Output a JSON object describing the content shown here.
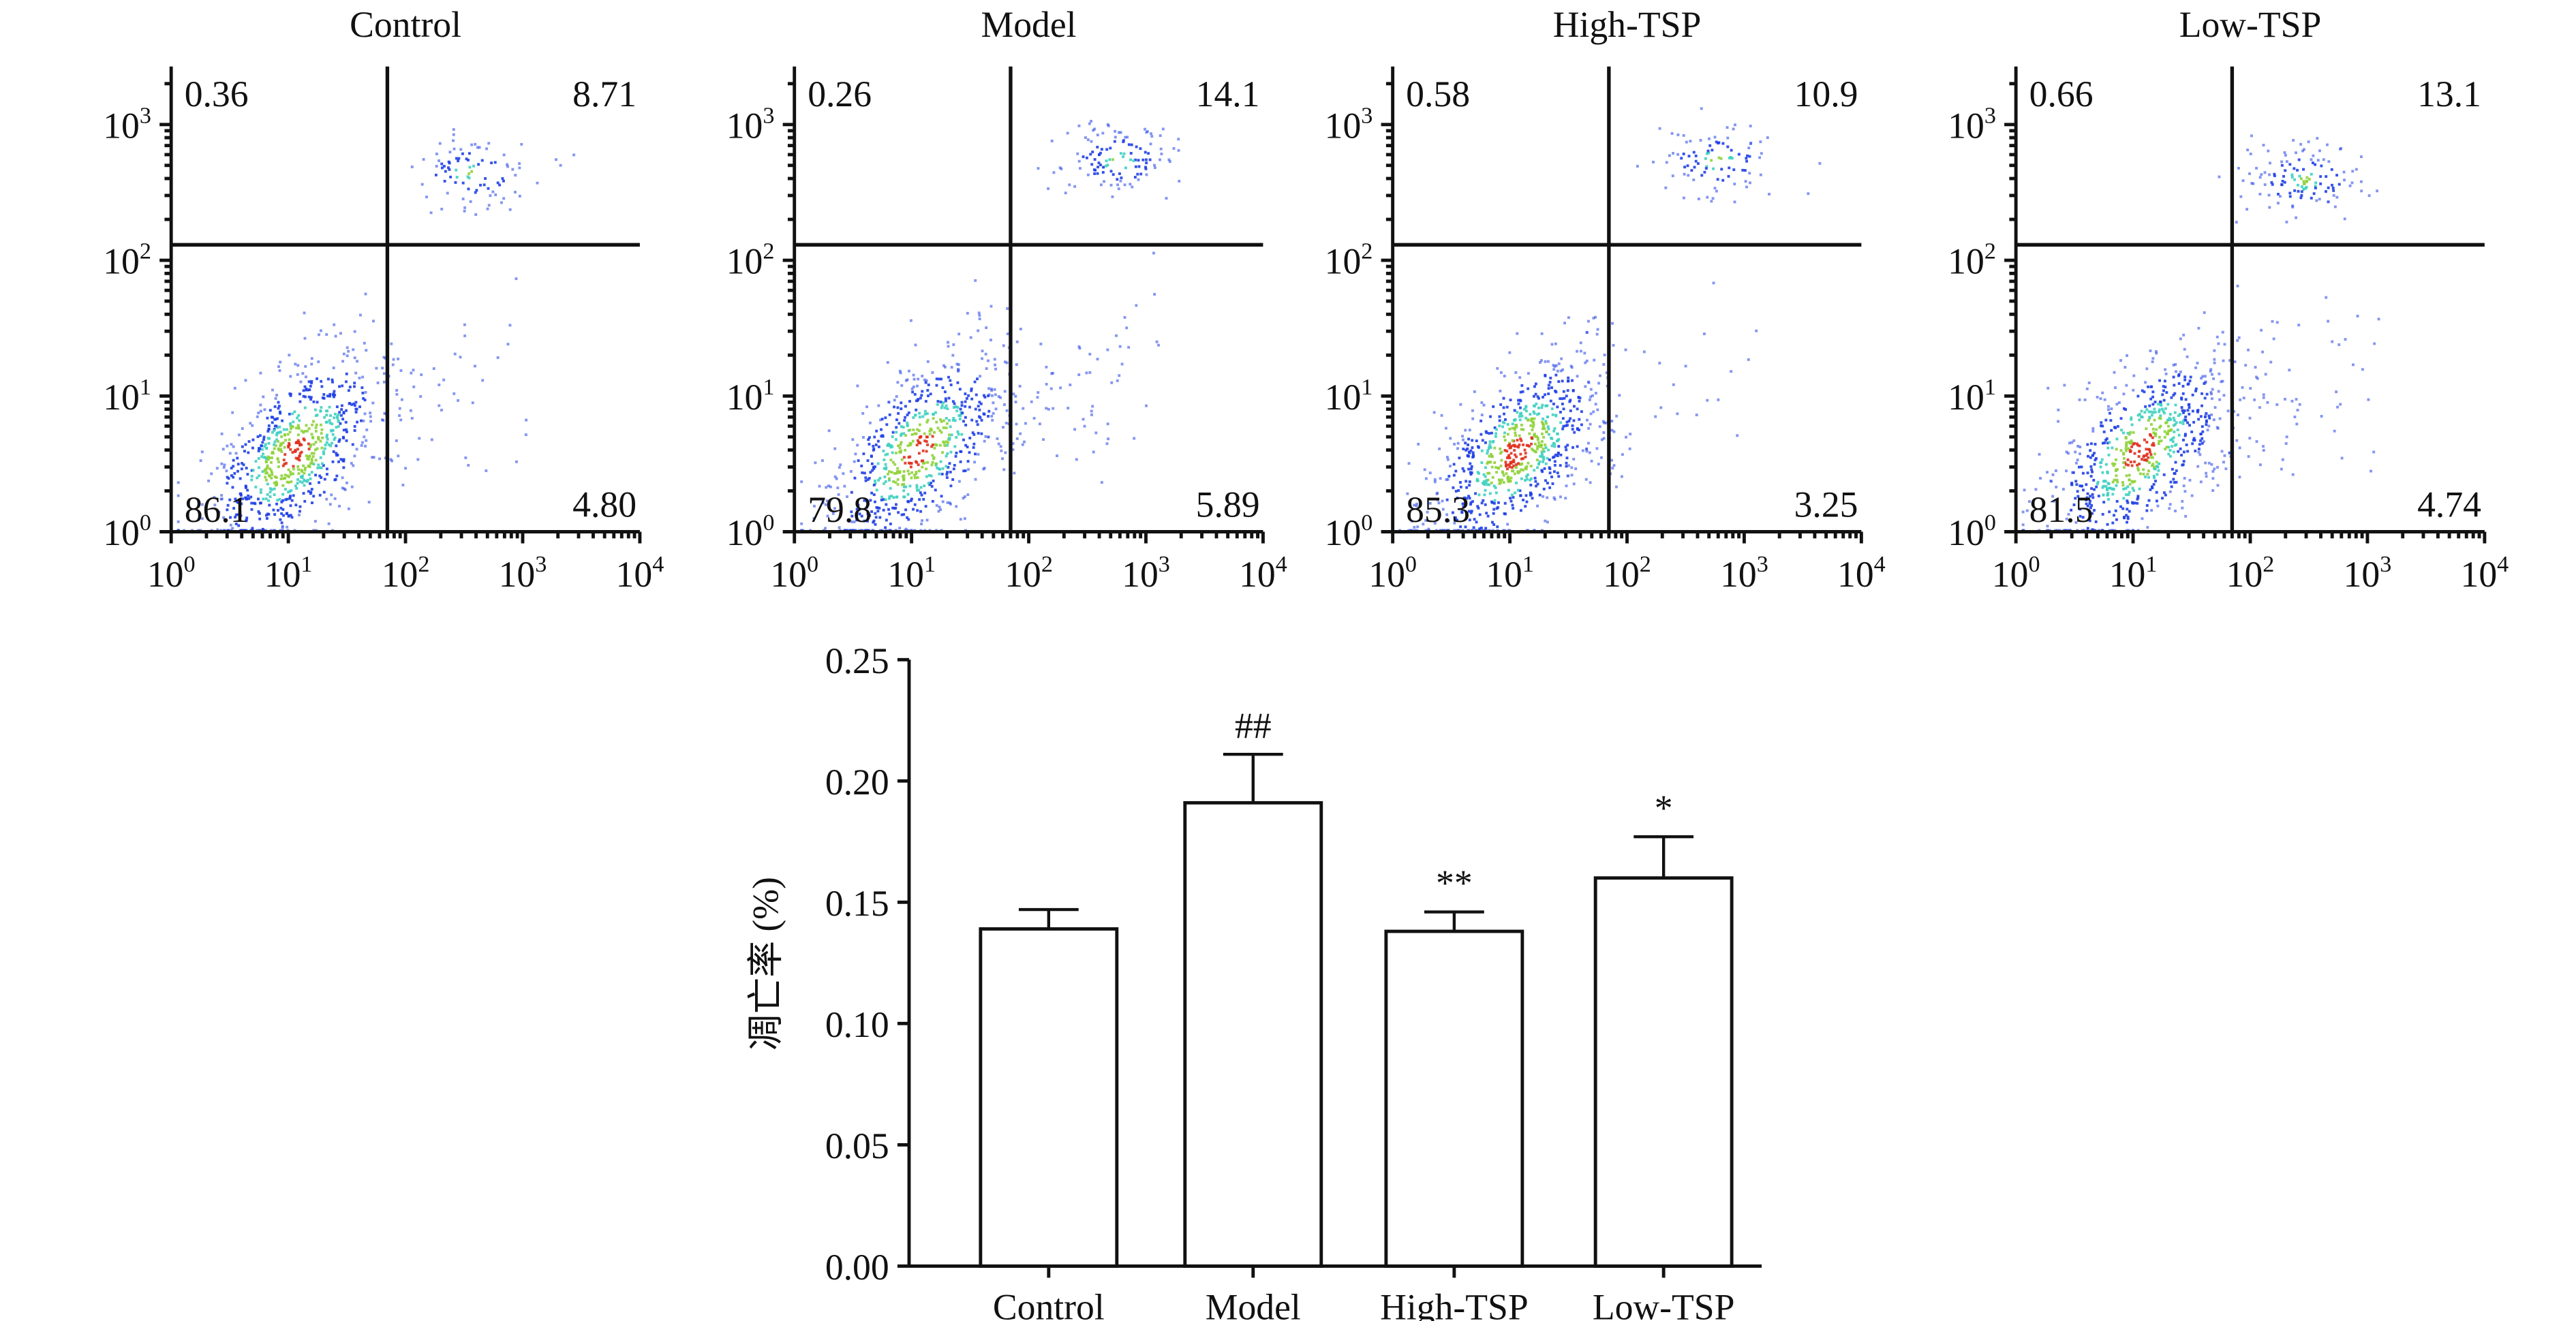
{
  "chart_data": [
    {
      "type": "scatter",
      "title": "Control",
      "x_scale": "log",
      "y_scale": "log",
      "xlim": [
        1,
        10000
      ],
      "ylim": [
        1,
        3000
      ],
      "x_ticks": [
        "10^0",
        "10^1",
        "10^2",
        "10^3",
        "10^4"
      ],
      "y_ticks": [
        "10^0",
        "10^1",
        "10^2",
        "10^3"
      ],
      "gate_x": 70,
      "gate_y": 130,
      "quadrants": {
        "upper_left": "0.36",
        "upper_right": "8.71",
        "lower_left": "86.1",
        "lower_right": "4.80"
      }
    },
    {
      "type": "scatter",
      "title": "Model",
      "x_scale": "log",
      "y_scale": "log",
      "xlim": [
        1,
        10000
      ],
      "ylim": [
        1,
        3000
      ],
      "x_ticks": [
        "10^0",
        "10^1",
        "10^2",
        "10^3",
        "10^4"
      ],
      "y_ticks": [
        "10^0",
        "10^1",
        "10^2",
        "10^3"
      ],
      "gate_x": 70,
      "gate_y": 130,
      "quadrants": {
        "upper_left": "0.26",
        "upper_right": "14.1",
        "lower_left": "79.8",
        "lower_right": "5.89"
      }
    },
    {
      "type": "scatter",
      "title": "High-TSP",
      "x_scale": "log",
      "y_scale": "log",
      "xlim": [
        1,
        10000
      ],
      "ylim": [
        1,
        3000
      ],
      "x_ticks": [
        "10^0",
        "10^1",
        "10^2",
        "10^3",
        "10^4"
      ],
      "y_ticks": [
        "10^0",
        "10^1",
        "10^2",
        "10^3"
      ],
      "gate_x": 70,
      "gate_y": 130,
      "quadrants": {
        "upper_left": "0.58",
        "upper_right": "10.9",
        "lower_left": "85.3",
        "lower_right": "3.25"
      }
    },
    {
      "type": "scatter",
      "title": "Low-TSP",
      "x_scale": "log",
      "y_scale": "log",
      "xlim": [
        1,
        10000
      ],
      "ylim": [
        1,
        3000
      ],
      "x_ticks": [
        "10^0",
        "10^1",
        "10^2",
        "10^3",
        "10^4"
      ],
      "y_ticks": [
        "10^0",
        "10^1",
        "10^2",
        "10^3"
      ],
      "gate_x": 70,
      "gate_y": 130,
      "quadrants": {
        "upper_left": "0.66",
        "upper_right": "13.1",
        "lower_left": "81.5",
        "lower_right": "4.74"
      }
    },
    {
      "type": "bar",
      "title": "",
      "xlabel": "",
      "ylabel": "凋亡率 (%)",
      "ylim": [
        0,
        0.25
      ],
      "y_ticks": [
        "0.00",
        "0.05",
        "0.10",
        "0.15",
        "0.20",
        "0.25"
      ],
      "categories": [
        "Control",
        "Model",
        "High-TSP",
        "Low-TSP"
      ],
      "values": [
        0.139,
        0.191,
        0.138,
        0.16
      ],
      "errors": [
        0.008,
        0.02,
        0.008,
        0.017
      ],
      "annotations": [
        "",
        "##",
        "**",
        "*"
      ]
    }
  ]
}
